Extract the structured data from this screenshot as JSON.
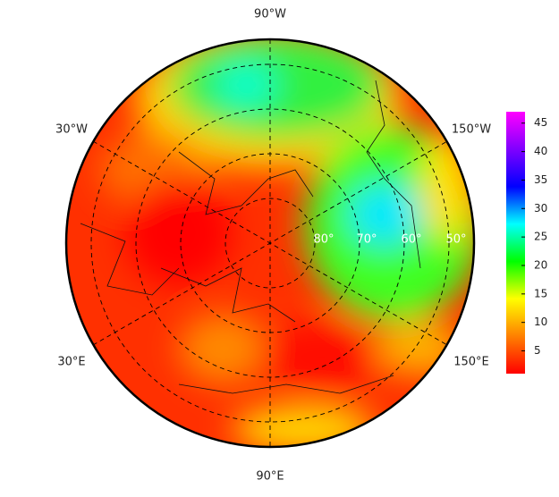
{
  "map": {
    "longitude_labels": [
      "90°W",
      "150°W",
      "150°E",
      "90°E",
      "30°E",
      "30°W"
    ],
    "latitude_labels": [
      "80°",
      "70°",
      "60°",
      "50°"
    ],
    "colorbar": {
      "lim": [
        1,
        47
      ],
      "ticks": [
        5,
        10,
        15,
        20,
        25,
        30,
        35,
        40,
        45
      ],
      "colors": [
        "#ff0000",
        "#ff8000",
        "#ffff00",
        "#00ff00",
        "#00ffff",
        "#0000ff",
        "#8000ff",
        "#ff00ff"
      ]
    }
  }
}
